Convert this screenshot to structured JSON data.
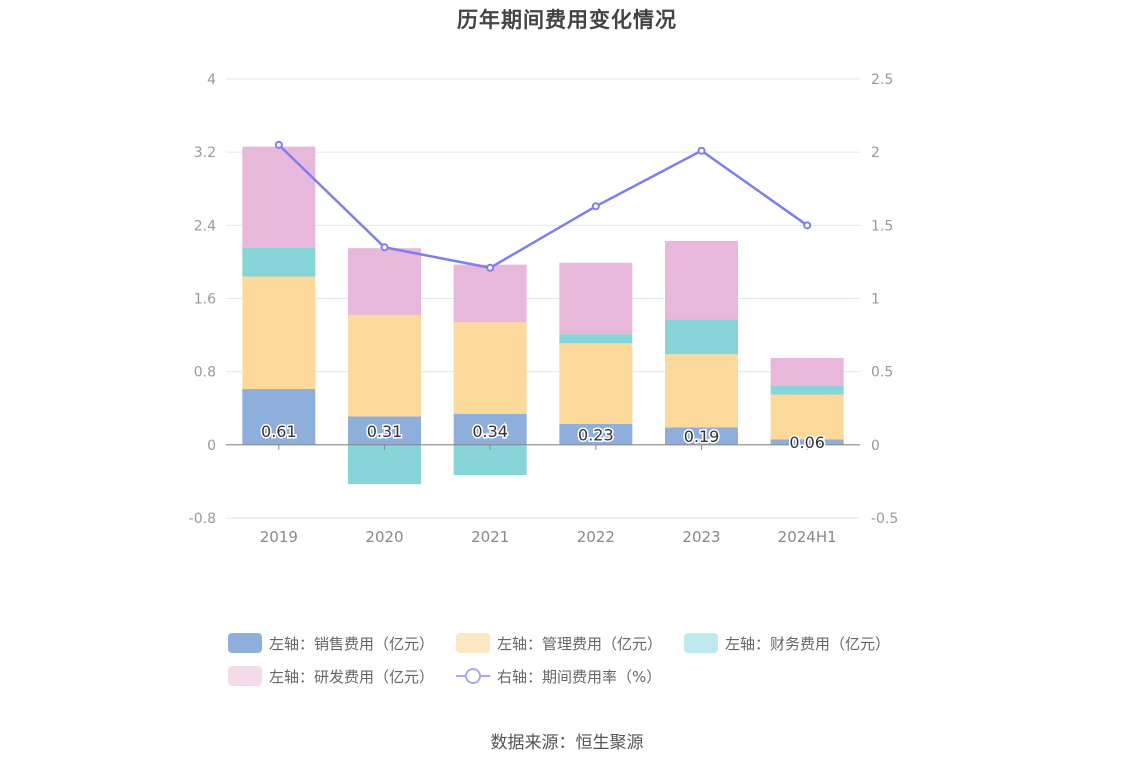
{
  "title": "历年期间费用变化情况",
  "source": "数据来源：恒生聚源",
  "legend": [
    {
      "label": "左轴：销售费用（亿元）",
      "color": "#8eaedc"
    },
    {
      "label": "左轴：管理费用（亿元）",
      "color": "#fde7c2"
    },
    {
      "label": "左轴：财务费用（亿元）",
      "color": "#bfe9ec"
    },
    {
      "label": "左轴：研发费用（亿元）",
      "color": "#f3dbea"
    },
    {
      "label": "右轴：期间费用率（%）",
      "color": "#a9a8f3"
    }
  ],
  "chart_data": {
    "type": "bar",
    "stacked": true,
    "categories": [
      "2019",
      "2020",
      "2021",
      "2022",
      "2023",
      "2024H1"
    ],
    "series": [
      {
        "name": "左轴：销售费用（亿元）",
        "axis": "left",
        "color": "#8eaedc",
        "values": [
          0.61,
          0.31,
          0.34,
          0.23,
          0.19,
          0.06
        ],
        "labels": [
          "0.61",
          "0.31",
          "0.34",
          "0.23",
          "0.19",
          "0.06"
        ]
      },
      {
        "name": "左轴：管理费用（亿元）",
        "axis": "left",
        "color": "#fdd99b",
        "values": [
          1.23,
          1.11,
          1.0,
          0.88,
          0.8,
          0.49
        ]
      },
      {
        "name": "左轴：财务费用（亿元）",
        "axis": "left",
        "color": "#87d5d9",
        "values": [
          0.32,
          -0.43,
          -0.33,
          0.1,
          0.38,
          0.1
        ]
      },
      {
        "name": "左轴：研发费用（亿元）",
        "axis": "left",
        "color": "#e8b8da",
        "values": [
          1.1,
          0.73,
          0.63,
          0.78,
          0.86,
          0.3
        ]
      },
      {
        "name": "右轴：期间费用率（%）",
        "type": "line",
        "axis": "right",
        "color": "#7f7ef0",
        "values": [
          2.05,
          1.35,
          1.21,
          1.63,
          2.01,
          1.5
        ]
      }
    ],
    "left_axis": {
      "min": -0.8,
      "max": 4,
      "ticks": [
        "-0.8",
        "0",
        "0.8",
        "1.6",
        "2.4",
        "3.2",
        "4"
      ]
    },
    "right_axis": {
      "min": -0.5,
      "max": 2.5,
      "ticks": [
        "-0.5",
        "0",
        "0.5",
        "1",
        "1.5",
        "2",
        "2.5"
      ]
    },
    "grid": true,
    "legend_position": "bottom"
  }
}
